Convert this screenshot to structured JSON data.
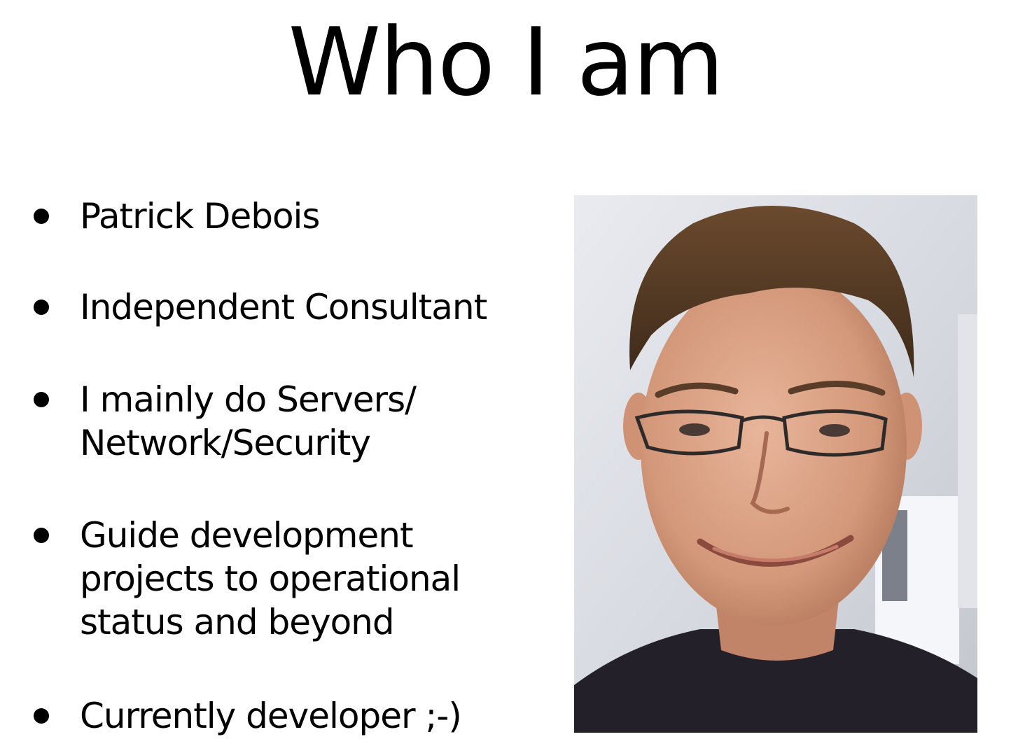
{
  "slide": {
    "title": "Who I am",
    "bullets": [
      {
        "lines": [
          "Patrick Debois"
        ]
      },
      {
        "lines": [
          "Independent Consultant"
        ]
      },
      {
        "lines": [
          "I mainly do Servers/",
          "Network/Security"
        ]
      },
      {
        "lines": [
          "Guide development",
          "projects to operational",
          "status and beyond"
        ]
      },
      {
        "lines": [
          "Currently developer ;-)"
        ]
      }
    ],
    "photo": {
      "icon": "portrait-photo-icon"
    },
    "colors": {
      "background": "#ffffff",
      "text": "#000000"
    }
  }
}
